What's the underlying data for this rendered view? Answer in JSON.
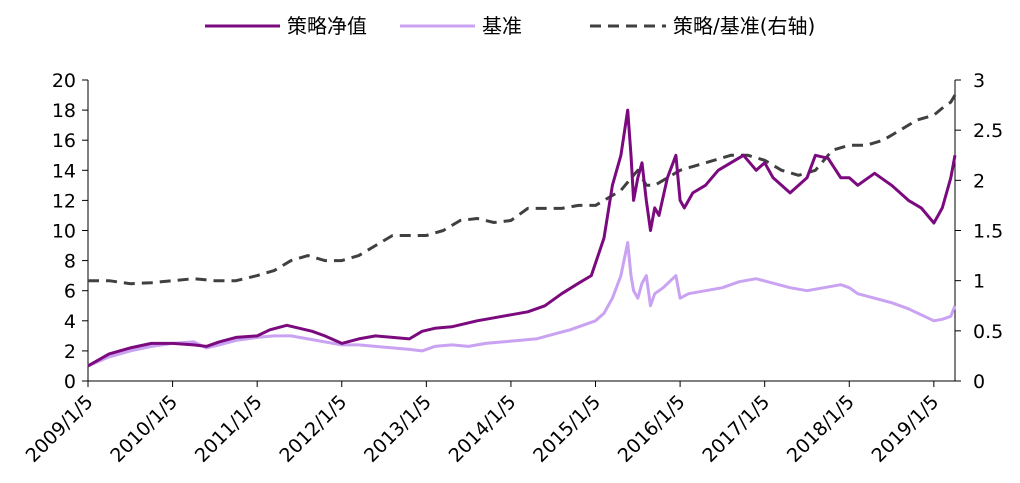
{
  "chart_data": {
    "type": "line",
    "title": "",
    "legend_position": "top",
    "grid": false,
    "x_ticks": [
      "2009/1/5",
      "2010/1/5",
      "2011/1/5",
      "2012/1/5",
      "2013/1/5",
      "2014/1/5",
      "2015/1/5",
      "2016/1/5",
      "2017/1/5",
      "2018/1/5",
      "2019/1/5"
    ],
    "x_range": [
      2009.0,
      2019.25
    ],
    "y_left": {
      "min": 0,
      "max": 20,
      "step": 2,
      "ticks": [
        "0",
        "2",
        "4",
        "6",
        "8",
        "10",
        "12",
        "14",
        "16",
        "18",
        "20"
      ]
    },
    "y_right": {
      "min": 0,
      "max": 3,
      "step": 0.5,
      "ticks": [
        "0",
        "0.5",
        "1",
        "1.5",
        "2",
        "2.5",
        "3"
      ]
    },
    "series": [
      {
        "name": "策略净值",
        "axis": "left",
        "color": "#7b0a7e",
        "style": "solid",
        "x": [
          2009.0,
          2009.25,
          2009.5,
          2009.75,
          2010.0,
          2010.25,
          2010.4,
          2010.55,
          2010.75,
          2011.0,
          2011.15,
          2011.35,
          2011.5,
          2011.65,
          2011.8,
          2012.0,
          2012.2,
          2012.4,
          2012.6,
          2012.8,
          2012.95,
          2013.1,
          2013.3,
          2013.45,
          2013.6,
          2013.8,
          2014.0,
          2014.2,
          2014.4,
          2014.6,
          2014.8,
          2014.95,
          2015.1,
          2015.2,
          2015.3,
          2015.38,
          2015.42,
          2015.45,
          2015.5,
          2015.55,
          2015.6,
          2015.65,
          2015.7,
          2015.75,
          2015.85,
          2015.95,
          2016.0,
          2016.05,
          2016.15,
          2016.3,
          2016.45,
          2016.6,
          2016.75,
          2016.9,
          2017.0,
          2017.1,
          2017.3,
          2017.5,
          2017.6,
          2017.75,
          2017.9,
          2018.0,
          2018.1,
          2018.3,
          2018.5,
          2018.7,
          2018.85,
          2019.0,
          2019.1,
          2019.2,
          2019.25
        ],
        "values": [
          1.0,
          1.8,
          2.2,
          2.5,
          2.5,
          2.4,
          2.3,
          2.6,
          2.9,
          3.0,
          3.4,
          3.7,
          3.5,
          3.3,
          3.0,
          2.5,
          2.8,
          3.0,
          2.9,
          2.8,
          3.3,
          3.5,
          3.6,
          3.8,
          4.0,
          4.2,
          4.4,
          4.6,
          5.0,
          5.8,
          6.5,
          7.0,
          9.5,
          13.0,
          15.0,
          18.0,
          15.0,
          12.0,
          13.5,
          14.5,
          12.0,
          10.0,
          11.5,
          11.0,
          13.5,
          15.0,
          12.0,
          11.5,
          12.5,
          13.0,
          14.0,
          14.5,
          15.0,
          14.0,
          14.5,
          13.5,
          12.5,
          13.5,
          15.0,
          14.8,
          13.5,
          13.5,
          13.0,
          13.8,
          13.0,
          12.0,
          11.5,
          10.5,
          11.5,
          13.5,
          15.0
        ]
      },
      {
        "name": "基准",
        "axis": "left",
        "color": "#c9a2f2",
        "style": "solid",
        "x": [
          2009.0,
          2009.25,
          2009.5,
          2009.75,
          2010.0,
          2010.25,
          2010.4,
          2010.55,
          2010.75,
          2011.0,
          2011.2,
          2011.4,
          2011.6,
          2011.8,
          2012.0,
          2012.2,
          2012.4,
          2012.6,
          2012.8,
          2012.95,
          2013.1,
          2013.3,
          2013.5,
          2013.7,
          2013.9,
          2014.1,
          2014.3,
          2014.5,
          2014.7,
          2014.9,
          2015.0,
          2015.1,
          2015.2,
          2015.3,
          2015.38,
          2015.42,
          2015.45,
          2015.5,
          2015.55,
          2015.6,
          2015.65,
          2015.7,
          2015.8,
          2015.95,
          2016.0,
          2016.1,
          2016.3,
          2016.5,
          2016.7,
          2016.9,
          2017.1,
          2017.3,
          2017.5,
          2017.7,
          2017.9,
          2018.0,
          2018.1,
          2018.3,
          2018.5,
          2018.7,
          2018.85,
          2019.0,
          2019.1,
          2019.2,
          2019.25
        ],
        "values": [
          1.0,
          1.6,
          2.0,
          2.3,
          2.5,
          2.6,
          2.2,
          2.4,
          2.7,
          2.9,
          3.0,
          3.0,
          2.8,
          2.6,
          2.4,
          2.4,
          2.3,
          2.2,
          2.1,
          2.0,
          2.3,
          2.4,
          2.3,
          2.5,
          2.6,
          2.7,
          2.8,
          3.1,
          3.4,
          3.8,
          4.0,
          4.5,
          5.5,
          7.0,
          9.2,
          7.0,
          6.0,
          5.5,
          6.5,
          7.0,
          5.0,
          5.8,
          6.2,
          7.0,
          5.5,
          5.8,
          6.0,
          6.2,
          6.6,
          6.8,
          6.5,
          6.2,
          6.0,
          6.2,
          6.4,
          6.2,
          5.8,
          5.5,
          5.2,
          4.8,
          4.4,
          4.0,
          4.1,
          4.3,
          5.0
        ]
      },
      {
        "name": "策略/基准(右轴)",
        "axis": "right",
        "color": "#404040",
        "style": "dashed",
        "x": [
          2009.0,
          2009.25,
          2009.5,
          2009.75,
          2010.0,
          2010.25,
          2010.5,
          2010.75,
          2011.0,
          2011.2,
          2011.4,
          2011.6,
          2011.8,
          2012.0,
          2012.2,
          2012.4,
          2012.6,
          2012.8,
          2013.0,
          2013.2,
          2013.4,
          2013.6,
          2013.8,
          2014.0,
          2014.2,
          2014.4,
          2014.6,
          2014.8,
          2015.0,
          2015.1,
          2015.2,
          2015.3,
          2015.4,
          2015.5,
          2015.6,
          2015.7,
          2015.8,
          2016.0,
          2016.2,
          2016.4,
          2016.6,
          2016.8,
          2017.0,
          2017.2,
          2017.4,
          2017.6,
          2017.8,
          2018.0,
          2018.2,
          2018.4,
          2018.6,
          2018.8,
          2019.0,
          2019.1,
          2019.2,
          2019.25
        ],
        "values": [
          1.0,
          1.0,
          0.97,
          0.98,
          1.0,
          1.02,
          1.0,
          1.0,
          1.05,
          1.1,
          1.2,
          1.25,
          1.2,
          1.2,
          1.25,
          1.35,
          1.45,
          1.45,
          1.45,
          1.5,
          1.6,
          1.62,
          1.58,
          1.6,
          1.72,
          1.72,
          1.72,
          1.75,
          1.75,
          1.8,
          1.85,
          1.9,
          2.0,
          2.1,
          1.95,
          1.95,
          2.0,
          2.1,
          2.15,
          2.2,
          2.25,
          2.25,
          2.2,
          2.1,
          2.05,
          2.1,
          2.3,
          2.35,
          2.35,
          2.4,
          2.5,
          2.6,
          2.65,
          2.72,
          2.78,
          2.85
        ]
      }
    ]
  },
  "legend": [
    {
      "label": "策略净值",
      "color": "#7b0a7e",
      "style": "solid"
    },
    {
      "label": "基准",
      "color": "#c9a2f2",
      "style": "solid"
    },
    {
      "label": "策略/基准(右轴)",
      "color": "#404040",
      "style": "dashed"
    }
  ]
}
